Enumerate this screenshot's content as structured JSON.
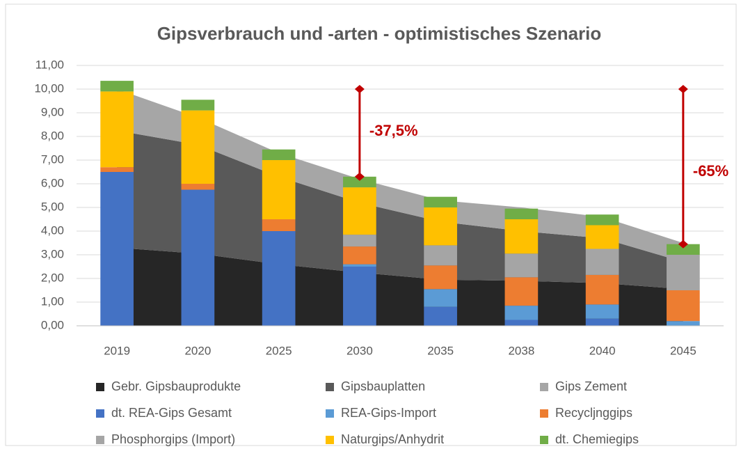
{
  "chart_data": {
    "type": "bar",
    "title": "Gipsverbrauch und -arten - optimistisches Szenario",
    "categories": [
      "2019",
      "2020",
      "2025",
      "2030",
      "2035",
      "2038",
      "2040",
      "2045"
    ],
    "ylim": [
      0,
      11
    ],
    "yticks": [
      {
        "value": 0,
        "label": "0,00"
      },
      {
        "value": 1,
        "label": "1,00"
      },
      {
        "value": 2,
        "label": "2,00"
      },
      {
        "value": 3,
        "label": "3,00"
      },
      {
        "value": 4,
        "label": "4,00"
      },
      {
        "value": 5,
        "label": "5,00"
      },
      {
        "value": 6,
        "label": "6,00"
      },
      {
        "value": 7,
        "label": "7,00"
      },
      {
        "value": 8,
        "label": "8,00"
      },
      {
        "value": 9,
        "label": "9,00"
      },
      {
        "value": 10,
        "label": "10,00"
      },
      {
        "value": 11,
        "label": "11,00"
      }
    ],
    "grid": true,
    "series": [
      {
        "name": "Gebr. Gipsbauprodukte",
        "kind": "area",
        "color": "#262626",
        "values": [
          3.3,
          3.05,
          2.6,
          2.25,
          1.95,
          1.9,
          1.8,
          1.55
        ]
      },
      {
        "name": "Gipsbauplatten",
        "kind": "area",
        "color": "#595959",
        "values": [
          4.95,
          4.6,
          3.7,
          2.95,
          2.45,
          2.1,
          1.9,
          1.15
        ]
      },
      {
        "name": "Gips Zement",
        "kind": "area",
        "color": "#a6a6a6",
        "values": [
          1.75,
          1.15,
          1.0,
          1.0,
          0.9,
          1.0,
          0.9,
          0.8
        ]
      },
      {
        "name": "dt. REA-Gips Gesamt",
        "kind": "bar",
        "color": "#4472c4",
        "values": [
          6.5,
          5.75,
          4.0,
          2.5,
          0.8,
          0.25,
          0.3,
          0
        ]
      },
      {
        "name": "REA-Gips-Import",
        "kind": "bar",
        "color": "#5b9bd5",
        "values": [
          0,
          0,
          0,
          0.1,
          0.75,
          0.6,
          0.6,
          0.2
        ]
      },
      {
        "name": "Recycljnggips",
        "kind": "bar",
        "color": "#ed7d31",
        "values": [
          0.2,
          0.25,
          0.5,
          0.75,
          1.0,
          1.2,
          1.25,
          1.3
        ]
      },
      {
        "name": "Phosphorgips (Import)",
        "kind": "bar",
        "color": "#a5a5a5",
        "values": [
          0,
          0,
          0,
          0.5,
          0.85,
          1.0,
          1.1,
          1.5
        ]
      },
      {
        "name": "Naturgips/Anhydrit",
        "kind": "bar",
        "color": "#ffc000",
        "values": [
          3.2,
          3.1,
          2.5,
          2.0,
          1.6,
          1.45,
          1.0,
          0
        ]
      },
      {
        "name": "dt. Chemiegips",
        "kind": "bar",
        "color": "#70ad47",
        "values": [
          0.45,
          0.45,
          0.45,
          0.45,
          0.45,
          0.45,
          0.45,
          0.45
        ]
      }
    ],
    "annotations": [
      {
        "text": "-37,5%",
        "category": "2030",
        "from": 10,
        "to": 6.3,
        "color": "#c00000"
      },
      {
        "text": "-65%",
        "category": "2045",
        "from": 10,
        "to": 3.45,
        "color": "#c00000"
      }
    ]
  }
}
